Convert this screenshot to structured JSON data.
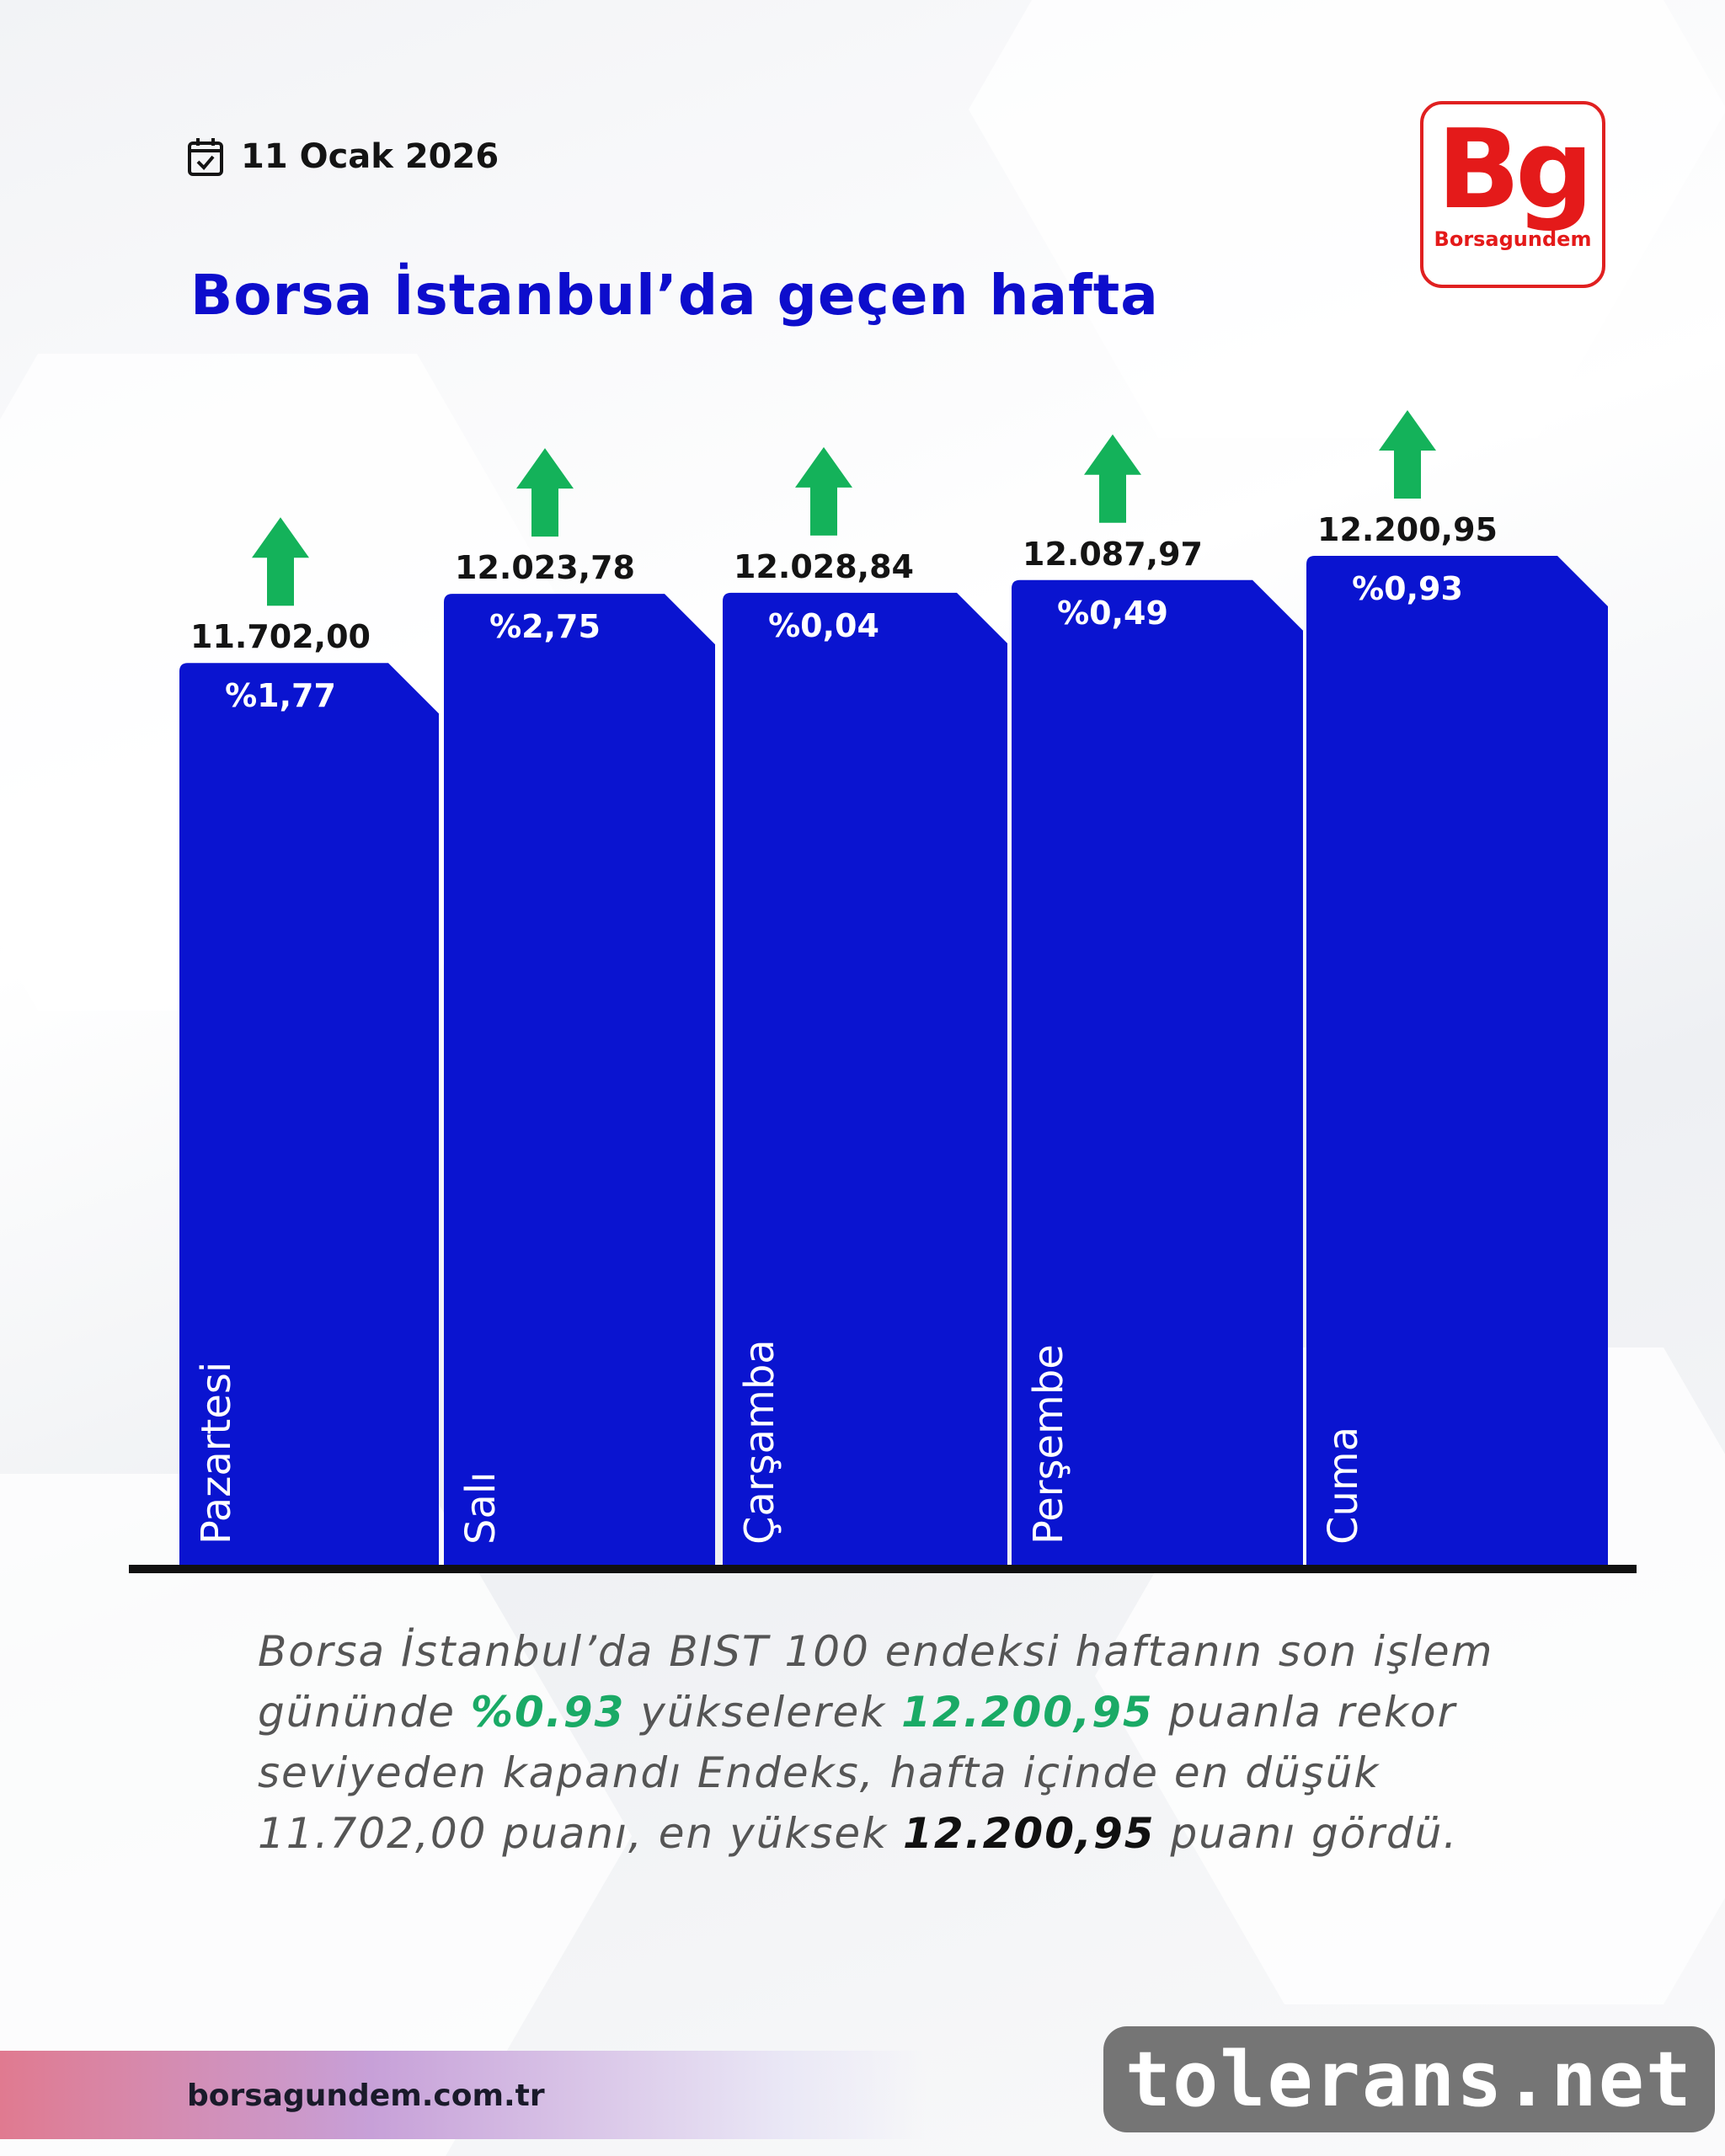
{
  "header": {
    "date": "11 Ocak 2026",
    "title": "Borsa İstanbul’da geçen hafta"
  },
  "logo": {
    "mark": "Bg",
    "name": "Borsagundem"
  },
  "chart_data": {
    "type": "bar",
    "categories": [
      "Pazartesi",
      "Salı",
      "Çarşamba",
      "Perşembe",
      "Cuma"
    ],
    "values": [
      11702.0,
      12023.78,
      12028.84,
      12087.97,
      12200.95
    ],
    "value_labels": [
      "11.702,00",
      "12.023,78",
      "12.028,84",
      "12.087,97",
      "12.200,95"
    ],
    "change_labels": [
      "%1,77",
      "%2,75",
      "%0,04",
      "%0,49",
      "%0,93"
    ],
    "direction": [
      "up",
      "up",
      "up",
      "up",
      "up"
    ],
    "bar_color": "#0a14d0",
    "arrow_color": "#14b25a",
    "title": "Borsa İstanbul’da geçen hafta"
  },
  "caption": {
    "p1": "Borsa İstanbul’da BIST 100 endeksi haftanın son işlem gününde ",
    "pct": "%0.93",
    "p2": " yükselerek ",
    "close": "12.200,95",
    "p3": " puanla rekor seviyeden kapandı Endeks, hafta içinde en düşük 11.702,00 puanı, en yüksek ",
    "high": "12.200,95",
    "p4": " puanı gördü."
  },
  "footer": {
    "site": "borsagundem.com.tr"
  },
  "watermark": "tolerans.net"
}
